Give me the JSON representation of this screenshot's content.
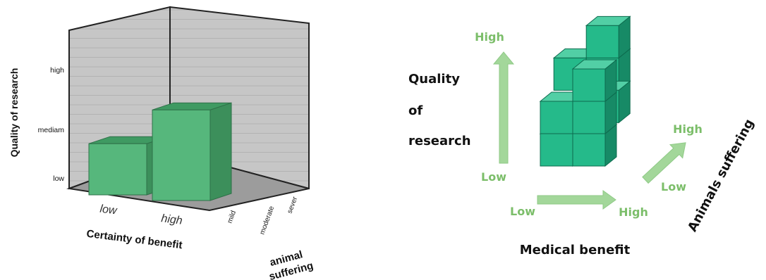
{
  "chart_data": [
    {
      "type": "bar",
      "style": "3d",
      "x_axis": {
        "label": "Certainty of benefit",
        "categories": [
          "low",
          "high"
        ]
      },
      "y_axis": {
        "label": "Quality of research",
        "categories": [
          "low",
          "mediam",
          "high"
        ]
      },
      "z_axis": {
        "label": "animal suffering",
        "label_lines": [
          "animal",
          "suffering"
        ],
        "categories": [
          "mild",
          "moderate",
          "sever"
        ]
      },
      "bars": [
        {
          "certainty": "low",
          "suffering": "mild",
          "quality": "mediam"
        },
        {
          "certainty": "high",
          "suffering": "mild",
          "quality": "high"
        }
      ],
      "bar_value_scale": {
        "low": 1,
        "mediam": 2,
        "high": 3,
        "base": 0.7
      },
      "colors": {
        "bar_front": "#56b77c",
        "bar_top": "#3f9a62",
        "bar_side": "#3c8f5b",
        "walls": "#c4c4c4",
        "floor": "#9a9a9a"
      }
    },
    {
      "type": "diagram",
      "axes": [
        {
          "name": "Quality of research",
          "label_lines": [
            "Quality",
            "of",
            "research"
          ],
          "low": "Low",
          "high": "High"
        },
        {
          "name": "Medical benefit",
          "low": "Low",
          "high": "High"
        },
        {
          "name": "Animals suffering",
          "low": "Low",
          "high": "High"
        }
      ],
      "colors": {
        "arrow": "#a3d79a",
        "arrow_text": "#7cbe6a",
        "cube": "#25ba8a",
        "cube_top": "#52cfa5",
        "cube_side": "#178a66",
        "cube_edge": "#0d6b4e"
      }
    }
  ]
}
